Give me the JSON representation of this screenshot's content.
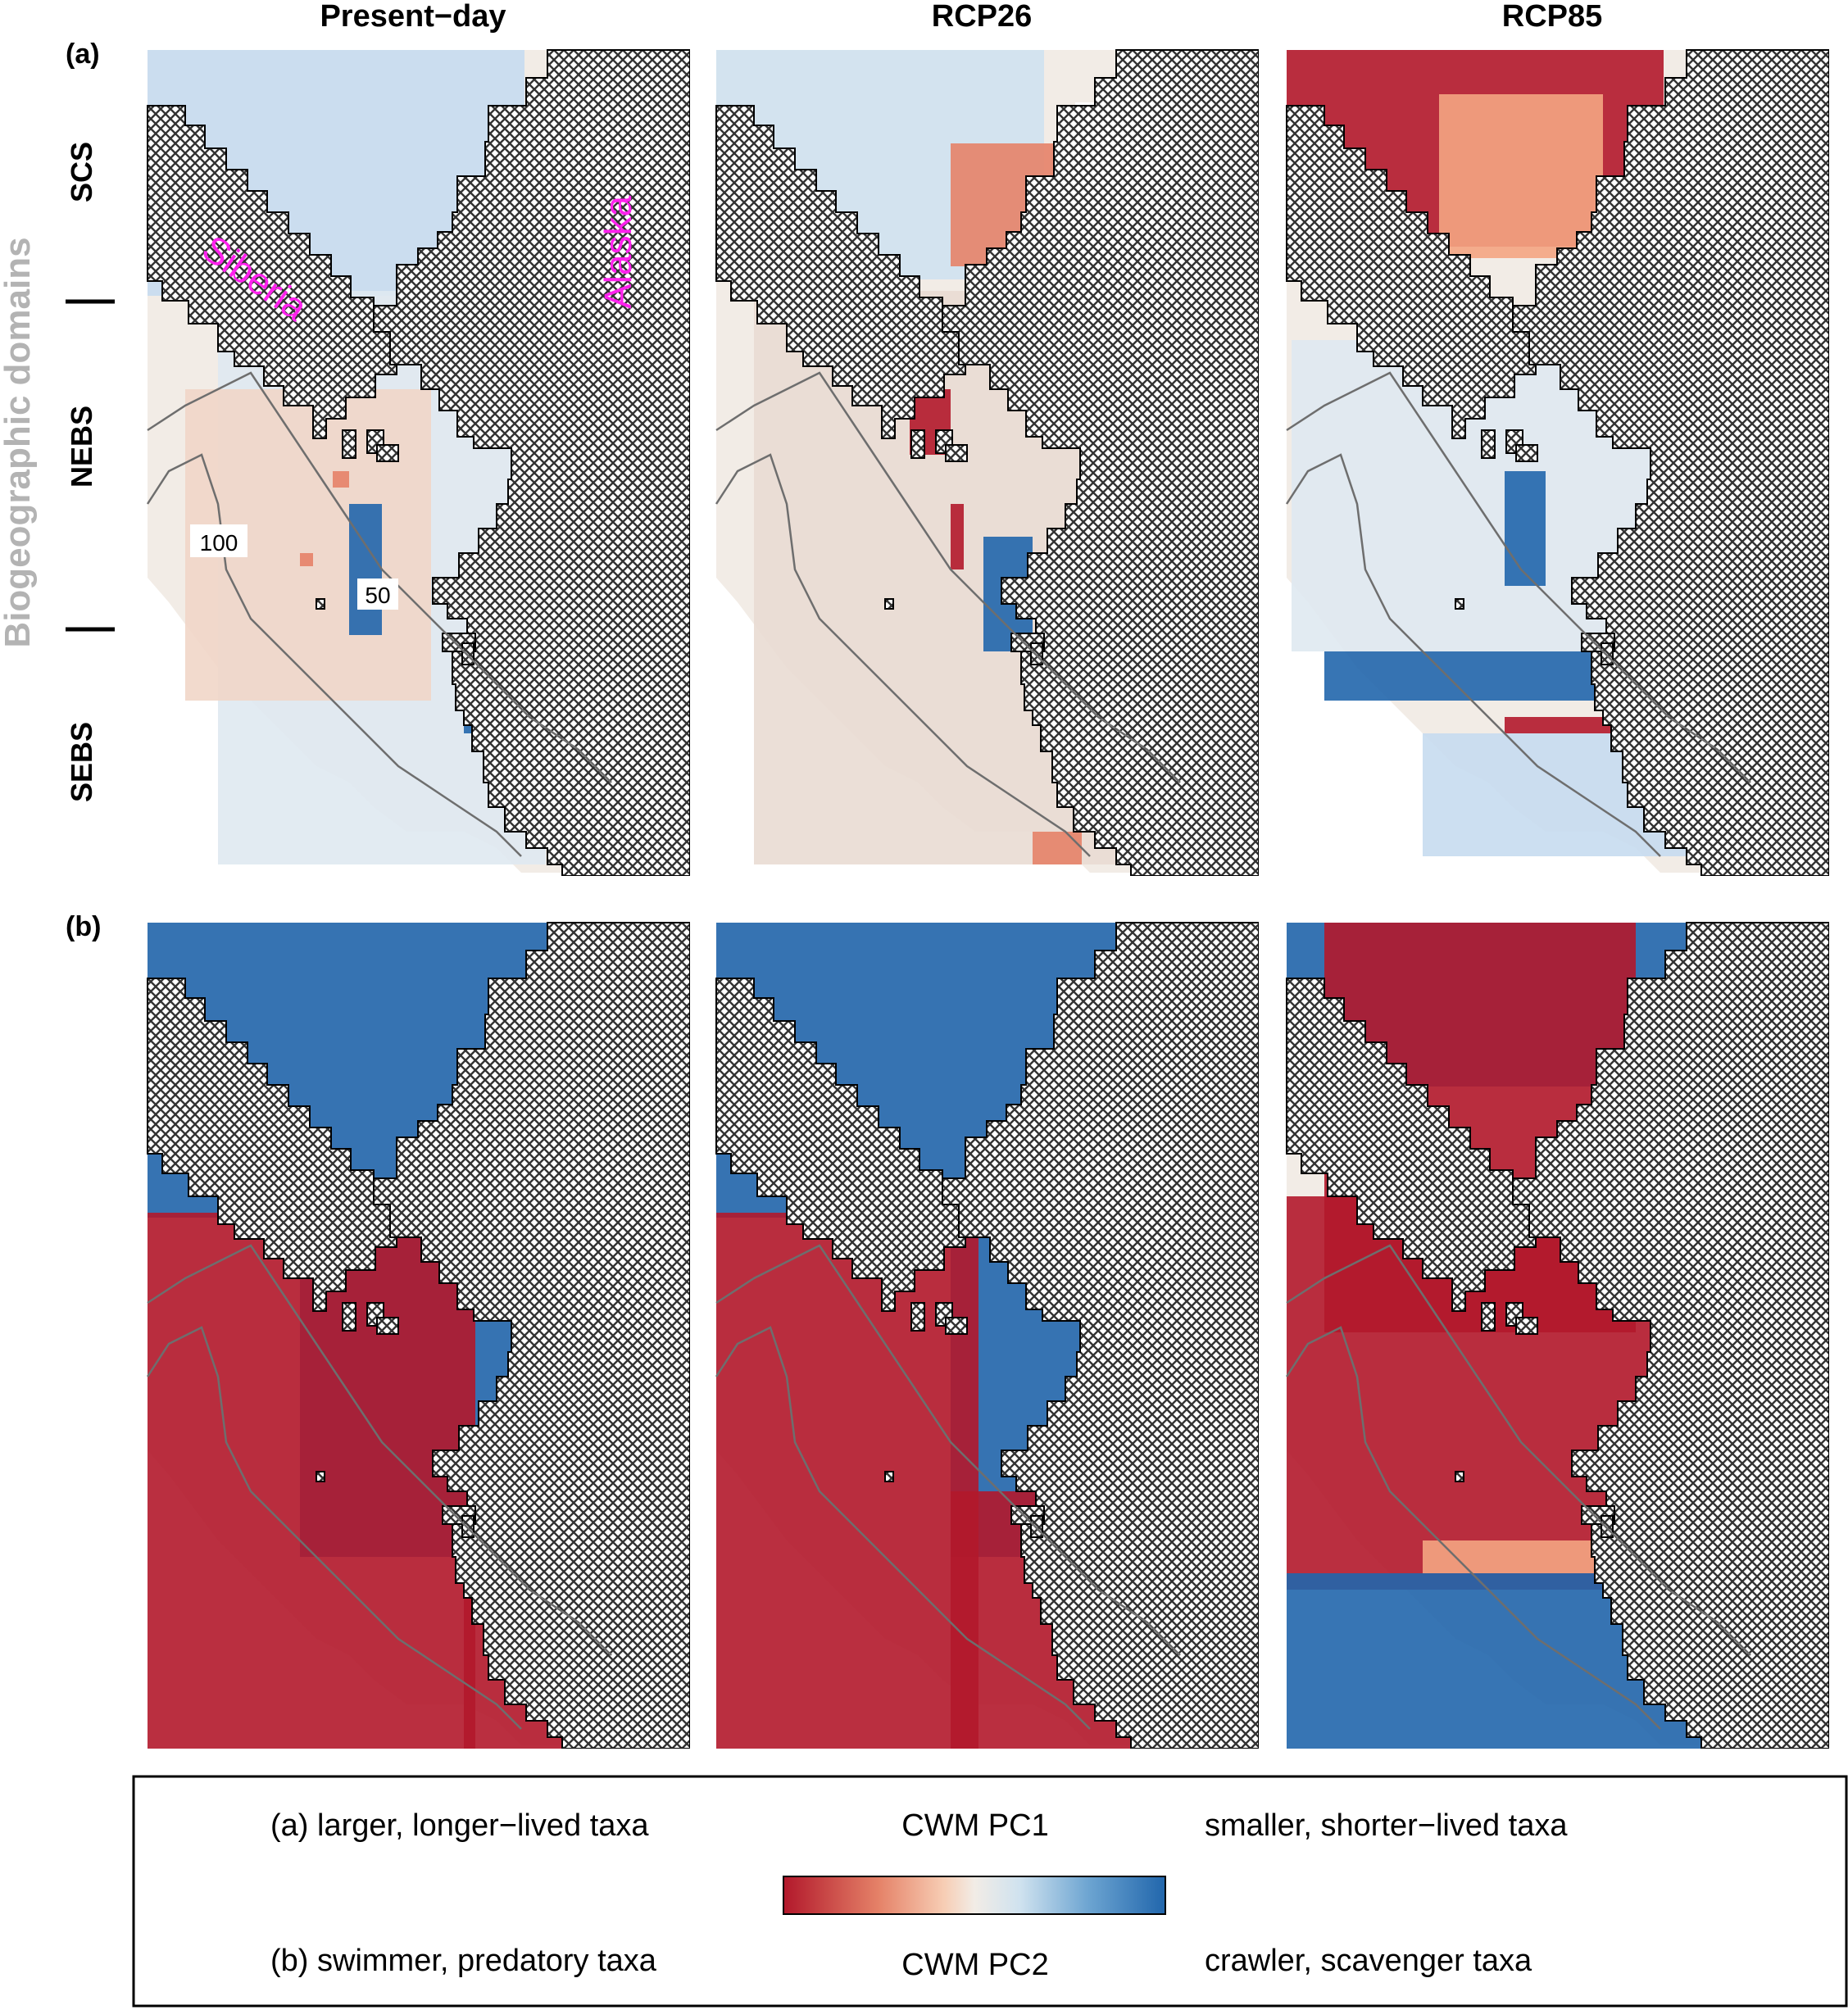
{
  "columns": [
    "Present−day",
    "RCP26",
    "RCP85"
  ],
  "rows": [
    {
      "label": "(a)",
      "variable": "CWM PC1"
    },
    {
      "label": "(b)",
      "variable": "CWM PC2"
    }
  ],
  "y_axis": {
    "title": "Biogeographic domains",
    "domains": [
      "SCS",
      "NEBS",
      "SEBS"
    ]
  },
  "map_labels": {
    "siberia": "Siberia",
    "alaska": "Alaska",
    "contour_100": "100",
    "contour_50": "50"
  },
  "legend": {
    "a_low": "(a) larger, longer−lived taxa",
    "a_title": "CWM PC1",
    "a_high": "smaller, shorter−lived taxa",
    "b_low": "(b) swimmer, predatory taxa",
    "b_title": "CWM PC2",
    "b_high": "crawler, scavenger taxa"
  },
  "colors": {
    "dark_red": "#b2182b",
    "light_red": "#f4a582",
    "neutral": "#f2ece6",
    "light_blue": "#c6dbef",
    "dark_blue": "#2166ac",
    "land_fill": "#9a9a9a",
    "contour": "#6e6e6e",
    "place_label": "#ff22ee",
    "y_title": "#b3b3b3"
  }
}
